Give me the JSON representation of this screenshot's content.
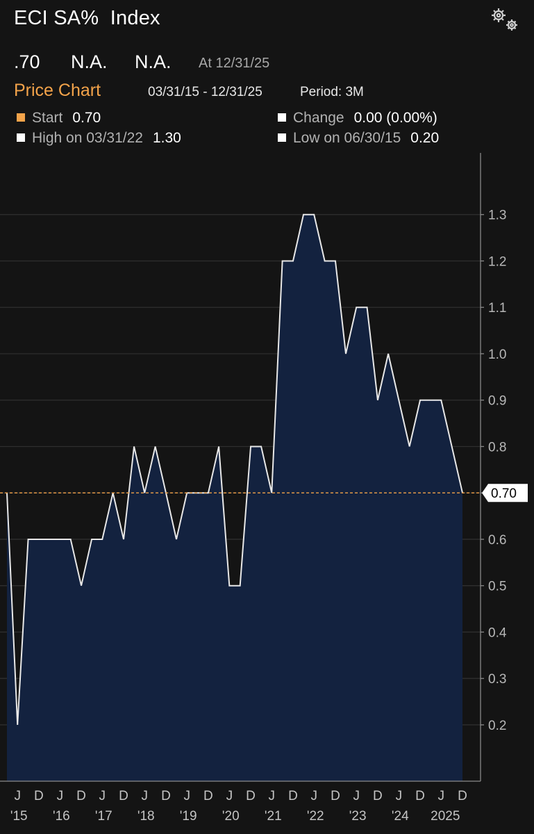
{
  "header": {
    "title": "ECI SA%  Index",
    "last_value": ".70",
    "field2": "N.A.",
    "field3": "N.A.",
    "as_of": "At 12/31/25",
    "chart_label": "Price Chart",
    "date_range": "03/31/15 - 12/31/25",
    "period": "Period: 3M",
    "icons": {
      "settings": "gear-icon"
    }
  },
  "stats": {
    "start_label": "Start",
    "start_value": "0.70",
    "change_label": "Change",
    "change_value": "0.00 (0.00%)",
    "high_label": "High on 03/31/22",
    "high_value": "1.30",
    "low_label": "Low on 06/30/15",
    "low_value": "0.20",
    "colors": {
      "start": "#f3a34a",
      "other": "#ffffff"
    }
  },
  "chart_data": {
    "type": "area",
    "x": [
      "03/31/15",
      "06/30/15",
      "09/30/15",
      "12/31/15",
      "03/31/16",
      "06/30/16",
      "09/30/16",
      "12/31/16",
      "03/31/17",
      "06/30/17",
      "09/30/17",
      "12/31/17",
      "03/31/18",
      "06/30/18",
      "09/30/18",
      "12/31/18",
      "03/31/19",
      "06/30/19",
      "09/30/19",
      "12/31/19",
      "03/31/20",
      "06/30/20",
      "09/30/20",
      "12/31/20",
      "03/31/21",
      "06/30/21",
      "09/30/21",
      "12/31/21",
      "03/31/22",
      "06/30/22",
      "09/30/22",
      "12/31/22",
      "03/31/23",
      "06/30/23",
      "09/30/23",
      "12/31/23",
      "03/31/24",
      "06/30/24",
      "09/30/24",
      "12/31/24",
      "03/31/25",
      "06/30/25",
      "09/30/25",
      "12/31/25"
    ],
    "series": [
      {
        "values": [
          0.7,
          0.2,
          0.6,
          0.6,
          0.6,
          0.6,
          0.6,
          0.5,
          0.6,
          0.6,
          0.7,
          0.6,
          0.8,
          0.7,
          0.8,
          0.7,
          0.6,
          0.7,
          0.7,
          0.7,
          0.8,
          0.5,
          0.5,
          0.8,
          0.8,
          0.7,
          1.2,
          1.2,
          1.3,
          1.3,
          1.2,
          1.2,
          1.0,
          1.1,
          1.1,
          0.9,
          1.0,
          0.9,
          0.8,
          0.9,
          0.9,
          0.9,
          0.8,
          0.7
        ]
      }
    ],
    "ylim": [
      0.14,
      1.37
    ],
    "y_ticks": [
      "0.2",
      "0.3",
      "0.4",
      "0.5",
      "0.6",
      "0.7",
      "0.8",
      "0.9",
      "1.0",
      "1.1",
      "1.2",
      "1.3"
    ],
    "x_ticks": [
      {
        "date": "06/30/15",
        "label": "J",
        "year": "'15"
      },
      {
        "date": "12/31/15",
        "label": "D",
        "year": ""
      },
      {
        "date": "06/30/16",
        "label": "J",
        "year": "'16"
      },
      {
        "date": "12/31/16",
        "label": "D",
        "year": ""
      },
      {
        "date": "06/30/17",
        "label": "J",
        "year": "'17"
      },
      {
        "date": "12/31/17",
        "label": "D",
        "year": ""
      },
      {
        "date": "06/30/18",
        "label": "J",
        "year": "'18"
      },
      {
        "date": "12/31/18",
        "label": "D",
        "year": ""
      },
      {
        "date": "06/30/19",
        "label": "J",
        "year": "'19"
      },
      {
        "date": "12/31/19",
        "label": "D",
        "year": ""
      },
      {
        "date": "06/30/20",
        "label": "J",
        "year": "'20"
      },
      {
        "date": "12/31/20",
        "label": "D",
        "year": ""
      },
      {
        "date": "06/30/21",
        "label": "J",
        "year": "'21"
      },
      {
        "date": "12/31/21",
        "label": "D",
        "year": ""
      },
      {
        "date": "06/30/22",
        "label": "J",
        "year": "'22"
      },
      {
        "date": "12/31/22",
        "label": "D",
        "year": ""
      },
      {
        "date": "06/30/23",
        "label": "J",
        "year": "'23"
      },
      {
        "date": "12/31/23",
        "label": "D",
        "year": ""
      },
      {
        "date": "06/30/24",
        "label": "J",
        "year": "'24"
      },
      {
        "date": "12/31/24",
        "label": "D",
        "year": ""
      },
      {
        "date": "06/30/25",
        "label": "J",
        "year": "2025"
      },
      {
        "date": "12/31/25",
        "label": "D",
        "year": ""
      }
    ],
    "last_price_label": "0.70",
    "reference_line_value": 0.7,
    "grid": "horizontal",
    "colors": {
      "fill": "#13223f",
      "line": "#e8e8e8",
      "reference": "#f3a34a",
      "grid": "#2f2f2f"
    }
  }
}
